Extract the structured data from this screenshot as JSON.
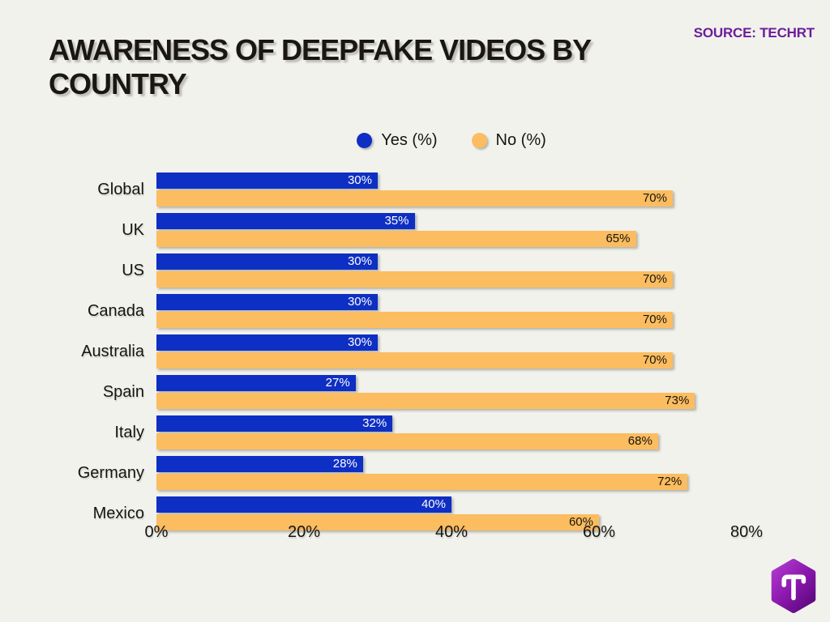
{
  "page": {
    "background": "#F2F2EC"
  },
  "header": {
    "title": "AWARENESS OF DEEPFAKE VIDEOS BY COUNTRY",
    "source": "SOURCE: TECHRT",
    "source_color": "#6C1C9C"
  },
  "legend": [
    {
      "label": "Yes (%)",
      "color": "#0E2FC3"
    },
    {
      "label": "No (%)",
      "color": "#FBBD60"
    }
  ],
  "chart_data": {
    "type": "bar",
    "orientation": "horizontal",
    "title": "AWARENESS OF DEEPFAKE VIDEOS BY COUNTRY",
    "categories": [
      "Global",
      "UK",
      "US",
      "Canada",
      "Australia",
      "Spain",
      "Italy",
      "Germany",
      "Mexico"
    ],
    "series": [
      {
        "name": "Yes (%)",
        "color": "#0E2FC3",
        "label_color": "#ffffff",
        "values": [
          30,
          35,
          30,
          30,
          30,
          27,
          32,
          28,
          40
        ]
      },
      {
        "name": "No (%)",
        "color": "#FBBD60",
        "label_color": "#17130e",
        "values": [
          70,
          65,
          70,
          70,
          70,
          73,
          68,
          72,
          60
        ]
      }
    ],
    "xlim": [
      0,
      80
    ],
    "x_ticks": [
      "0%",
      "20%",
      "40%",
      "60%",
      "80%"
    ],
    "value_suffix": "%",
    "grid": false,
    "legend_position": "top-center"
  },
  "logo": {
    "letter": "T",
    "gradient_from": "#B13BD1",
    "gradient_to": "#5C0A7E"
  }
}
